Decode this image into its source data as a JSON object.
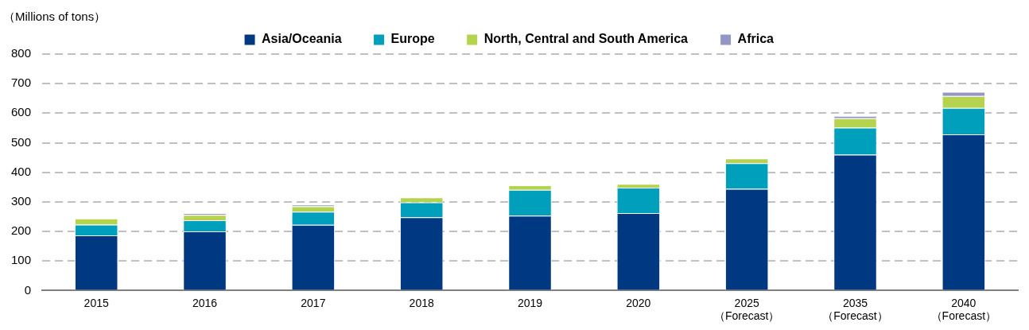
{
  "chart_data": {
    "type": "bar",
    "ylabel": "（Millions of tons）",
    "categories": [
      "2015",
      "2016",
      "2017",
      "2018",
      "2019",
      "2020",
      "2025\n（Forecast）",
      "2035\n（Forecast）",
      "2040\n（Forecast）"
    ],
    "series": [
      {
        "name": "Asia/Oceania",
        "color": "#003882",
        "values": [
          187,
          200,
          222,
          248,
          253,
          262,
          344,
          460,
          528
        ]
      },
      {
        "name": "Europe",
        "color": "#00a0bc",
        "values": [
          36,
          38,
          45,
          50,
          88,
          86,
          87,
          91,
          90
        ]
      },
      {
        "name": "North, Central and South America",
        "color": "#b5d34e",
        "values": [
          21,
          18,
          18,
          17,
          15,
          13,
          16,
          32,
          40
        ]
      },
      {
        "name": "Africa",
        "color": "#9496c6",
        "values": [
          0,
          6,
          6,
          0,
          0,
          0,
          0,
          8,
          14
        ]
      }
    ],
    "stacked": true,
    "ylim": [
      0,
      800
    ],
    "yticks": [
      0,
      100,
      200,
      300,
      400,
      500,
      600,
      700,
      800
    ],
    "grid": "y",
    "legend": "top"
  }
}
